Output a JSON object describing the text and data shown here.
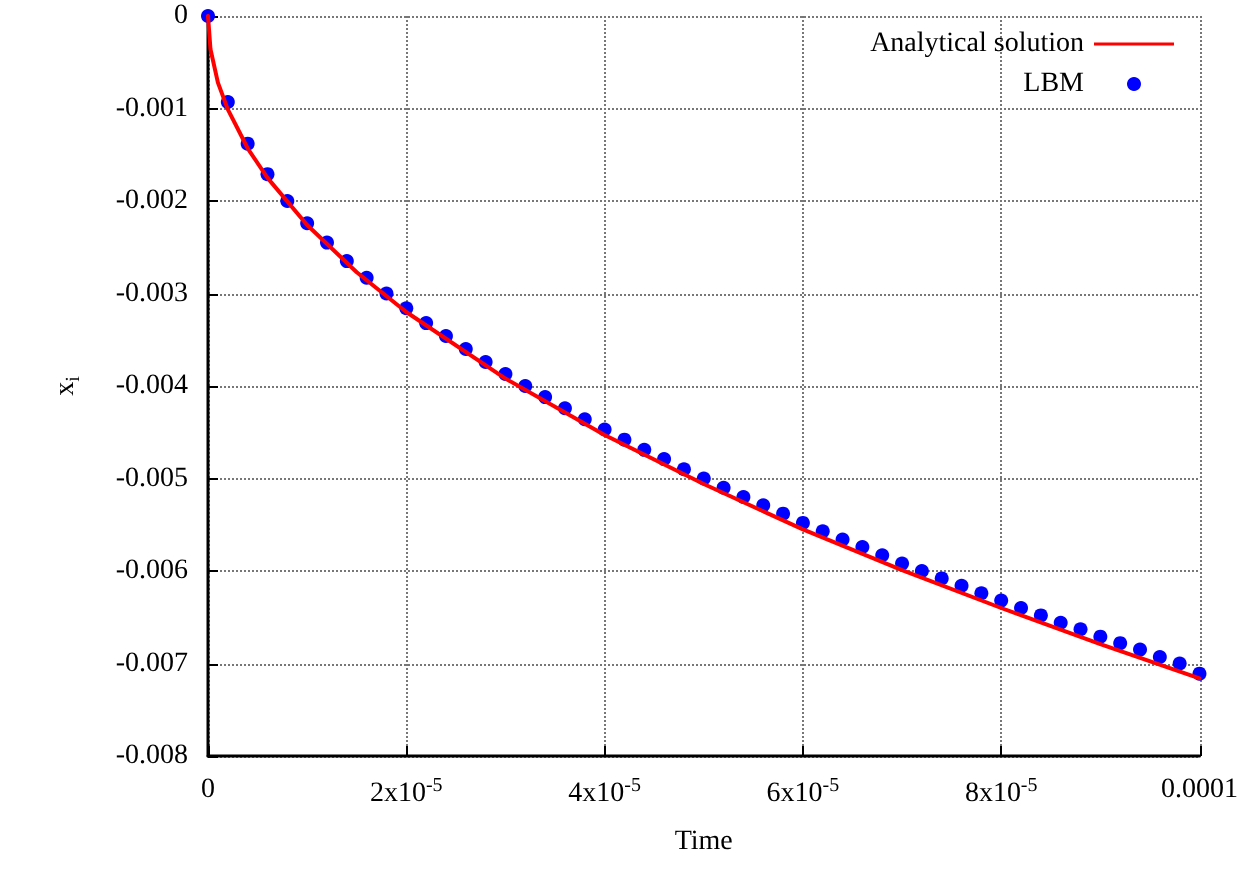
{
  "chart_data": {
    "type": "line",
    "xlabel": "Time",
    "ylabel": "x$_{i}$",
    "xlim": [
      0,
      0.0001
    ],
    "ylim": [
      -0.008,
      0
    ],
    "xticks": [
      0,
      {
        "value": 2e-05,
        "label": "2x10$^{-5}$"
      },
      {
        "value": 4e-05,
        "label": "4x10$^{-5}$"
      },
      {
        "value": 6e-05,
        "label": "6x10$^{-5}$"
      },
      {
        "value": 8e-05,
        "label": "8x10$^{-5}$"
      },
      0.0001
    ],
    "yticks": [
      0,
      -0.001,
      -0.002,
      -0.003,
      -0.004,
      -0.005,
      -0.006,
      -0.007,
      -0.008
    ],
    "grid": true,
    "legend": "top right",
    "series": [
      {
        "name": "Analytical solution",
        "color": "#ff0000",
        "marker": "none",
        "line_style": "solid",
        "x": [
          0,
          2.5e-07,
          1e-06,
          2e-06,
          4e-06,
          6e-06,
          1e-05,
          1.5e-05,
          2e-05,
          3e-05,
          4e-05,
          5e-05,
          6e-05,
          7e-05,
          8e-05,
          9e-05,
          0.0001
        ],
        "values": [
          0,
          -0.00036,
          -0.00072,
          -0.00101,
          -0.00143,
          -0.00175,
          -0.00226,
          -0.00277,
          -0.0032,
          -0.00392,
          -0.00453,
          -0.00506,
          -0.00555,
          -0.00599,
          -0.0064,
          -0.00679,
          -0.00716
        ]
      },
      {
        "name": "LBM",
        "type": "scatter",
        "color": "#0000ff",
        "marker": "circle",
        "x": [
          0,
          2e-06,
          4e-06,
          6e-06,
          8e-06,
          1e-05,
          1.2e-05,
          1.4e-05,
          1.6e-05,
          1.8e-05,
          2e-05,
          2.2e-05,
          2.4e-05,
          2.6e-05,
          2.8e-05,
          3e-05,
          3.2e-05,
          3.4e-05,
          3.6e-05,
          3.8e-05,
          4e-05,
          4.2e-05,
          4.4e-05,
          4.6e-05,
          4.8e-05,
          5e-05,
          5.2e-05,
          5.4e-05,
          5.6e-05,
          5.8e-05,
          6e-05,
          6.2e-05,
          6.4e-05,
          6.6e-05,
          6.8e-05,
          7e-05,
          7.2e-05,
          7.4e-05,
          7.6e-05,
          7.8e-05,
          8e-05,
          8.2e-05,
          8.4e-05,
          8.6e-05,
          8.8e-05,
          9e-05,
          9.2e-05,
          9.4e-05,
          9.6e-05,
          9.8e-05,
          0.0001
        ],
        "values": [
          0,
          -0.00093,
          -0.00138,
          -0.00171,
          -0.002,
          -0.00224,
          -0.00245,
          -0.00265,
          -0.00283,
          -0.003,
          -0.00316,
          -0.00332,
          -0.00346,
          -0.0036,
          -0.00374,
          -0.00387,
          -0.004,
          -0.00412,
          -0.00424,
          -0.00436,
          -0.00447,
          -0.00458,
          -0.00469,
          -0.00479,
          -0.0049,
          -0.005,
          -0.0051,
          -0.0052,
          -0.00529,
          -0.00538,
          -0.00548,
          -0.00557,
          -0.00566,
          -0.00574,
          -0.00583,
          -0.00592,
          -0.006,
          -0.00608,
          -0.00616,
          -0.00624,
          -0.00632,
          -0.0064,
          -0.00648,
          -0.00656,
          -0.00663,
          -0.00671,
          -0.00678,
          -0.00685,
          -0.00693,
          -0.007,
          -0.00711
        ]
      }
    ]
  }
}
